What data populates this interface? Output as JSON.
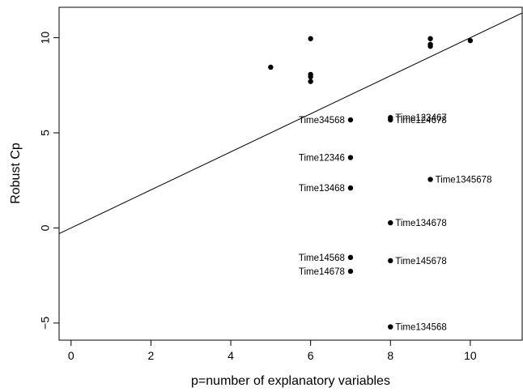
{
  "chart_data": {
    "type": "scatter",
    "xlabel": "p=number of explanatory variables",
    "ylabel": "Robust Cp",
    "xlim": [
      -0.3,
      11.3
    ],
    "ylim": [
      -5.9,
      11.6
    ],
    "xticks": [
      0,
      2,
      4,
      6,
      8,
      10
    ],
    "yticks": [
      -5,
      0,
      5,
      10
    ],
    "grid": false,
    "reference_line": {
      "intercept": 0,
      "slope": 1
    },
    "points": [
      {
        "x": 5,
        "y": 8.45,
        "label": ""
      },
      {
        "x": 6,
        "y": 9.95,
        "label": ""
      },
      {
        "x": 6,
        "y": 8.07,
        "label": ""
      },
      {
        "x": 6,
        "y": 7.95,
        "label": ""
      },
      {
        "x": 6,
        "y": 7.7,
        "label": ""
      },
      {
        "x": 9,
        "y": 9.95,
        "label": ""
      },
      {
        "x": 9,
        "y": 9.65,
        "label": ""
      },
      {
        "x": 9,
        "y": 9.55,
        "label": ""
      },
      {
        "x": 10,
        "y": 9.85,
        "label": ""
      },
      {
        "x": 7,
        "y": 5.68,
        "label": "Time34568",
        "side": "left"
      },
      {
        "x": 8,
        "y": 5.8,
        "label": "Time123467",
        "side": "right"
      },
      {
        "x": 8,
        "y": 5.68,
        "label": "Time124678",
        "side": "right"
      },
      {
        "x": 7,
        "y": 3.7,
        "label": "Time12346",
        "side": "left"
      },
      {
        "x": 9,
        "y": 2.55,
        "label": "Time1345678",
        "side": "right"
      },
      {
        "x": 7,
        "y": 2.1,
        "label": "Time13468",
        "side": "left"
      },
      {
        "x": 8,
        "y": 0.27,
        "label": "Time134678",
        "side": "right"
      },
      {
        "x": 7,
        "y": -1.55,
        "label": "Time14568",
        "side": "left"
      },
      {
        "x": 8,
        "y": -1.72,
        "label": "Time145678",
        "side": "right"
      },
      {
        "x": 7,
        "y": -2.28,
        "label": "Time14678",
        "side": "left"
      },
      {
        "x": 8,
        "y": -5.2,
        "label": "Time134568",
        "side": "right"
      }
    ]
  }
}
